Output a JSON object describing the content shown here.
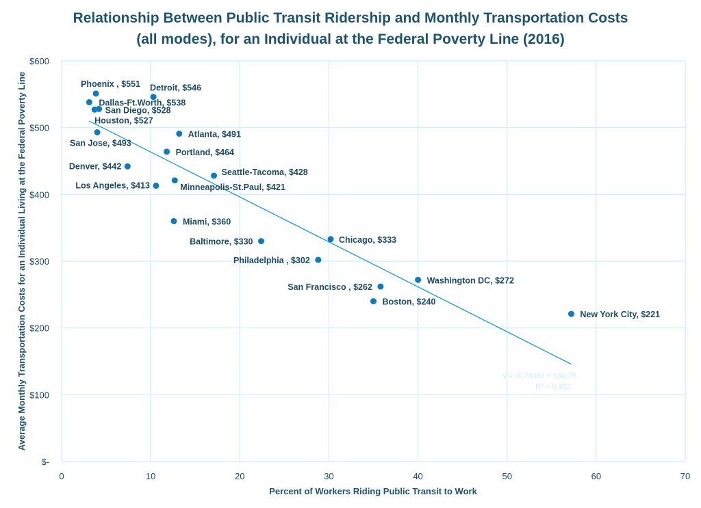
{
  "chart_data": {
    "type": "scatter",
    "title_lines": [
      "Relationship Between Public Transit Ridership and Monthly Transportation Costs",
      "(all modes), for an Individual at the Federal Poverty Line (2016)"
    ],
    "xlabel": "Percent of Workers Riding Public Transit to Work",
    "ylabel": "Average Monthly Transportation Costs for an Individual Living at the Federal Poverty Line",
    "xlim": [
      0,
      70
    ],
    "ylim": [
      0,
      600
    ],
    "xticks": [
      0,
      10,
      20,
      30,
      40,
      50,
      60,
      70
    ],
    "xtick_labels": [
      "0",
      "10",
      "20",
      "30",
      "40",
      "50",
      "60",
      "70"
    ],
    "yticks": [
      0,
      100,
      200,
      300,
      400,
      500,
      600
    ],
    "ytick_labels": [
      "$-",
      "$100",
      "$200",
      "$300",
      "$400",
      "$500",
      "$600"
    ],
    "grid": true,
    "colors": {
      "point": "#0e7bbf",
      "trend": "#1a9ad6",
      "grid": "#cdeefc",
      "text": "#1d4b63"
    },
    "points": [
      {
        "label": "Phoenix ,  $551",
        "x": 3.85,
        "y": 551
      },
      {
        "label": "Detroit,  $546",
        "x": 10.3,
        "y": 546
      },
      {
        "label": "Dallas-Ft.Worth,  $538",
        "x": 3.1,
        "y": 538
      },
      {
        "label": "San Diego,  $528",
        "x": 4.2,
        "y": 528
      },
      {
        "label": "Houston,  $527",
        "x": 3.7,
        "y": 527
      },
      {
        "label": "San Jose,  $493",
        "x": 4.0,
        "y": 493
      },
      {
        "label": "Atlanta,  $491",
        "x": 13.2,
        "y": 491
      },
      {
        "label": "Portland,  $464",
        "x": 11.8,
        "y": 464
      },
      {
        "label": "Denver,  $442",
        "x": 7.4,
        "y": 442
      },
      {
        "label": "Seattle-Tacoma,  $428",
        "x": 17.1,
        "y": 428
      },
      {
        "label": "Minneapolis-St.Paul,  $421",
        "x": 12.7,
        "y": 421
      },
      {
        "label": "Los Angeles,  $413",
        "x": 10.6,
        "y": 413
      },
      {
        "label": "Miami,  $360",
        "x": 12.6,
        "y": 360
      },
      {
        "label": "Baltimore,  $330",
        "x": 22.4,
        "y": 330
      },
      {
        "label": "Chicago,  $333",
        "x": 30.2,
        "y": 333
      },
      {
        "label": "Philadelphia ,  $302",
        "x": 28.8,
        "y": 302
      },
      {
        "label": "San Francisco ,  $262",
        "x": 35.8,
        "y": 262
      },
      {
        "label": "Washington DC,  $272",
        "x": 40.0,
        "y": 272
      },
      {
        "label": "Boston,  $240",
        "x": 35.0,
        "y": 240
      },
      {
        "label": "New York City,  $221",
        "x": 57.2,
        "y": 221
      }
    ],
    "trendline": {
      "type": "linear",
      "slope": -6.7308,
      "intercept": 530.79,
      "x_range": [
        3.1,
        57.2
      ],
      "equation": "y = -6.7308x + 530.79",
      "r2": "R² = 0.832"
    }
  }
}
